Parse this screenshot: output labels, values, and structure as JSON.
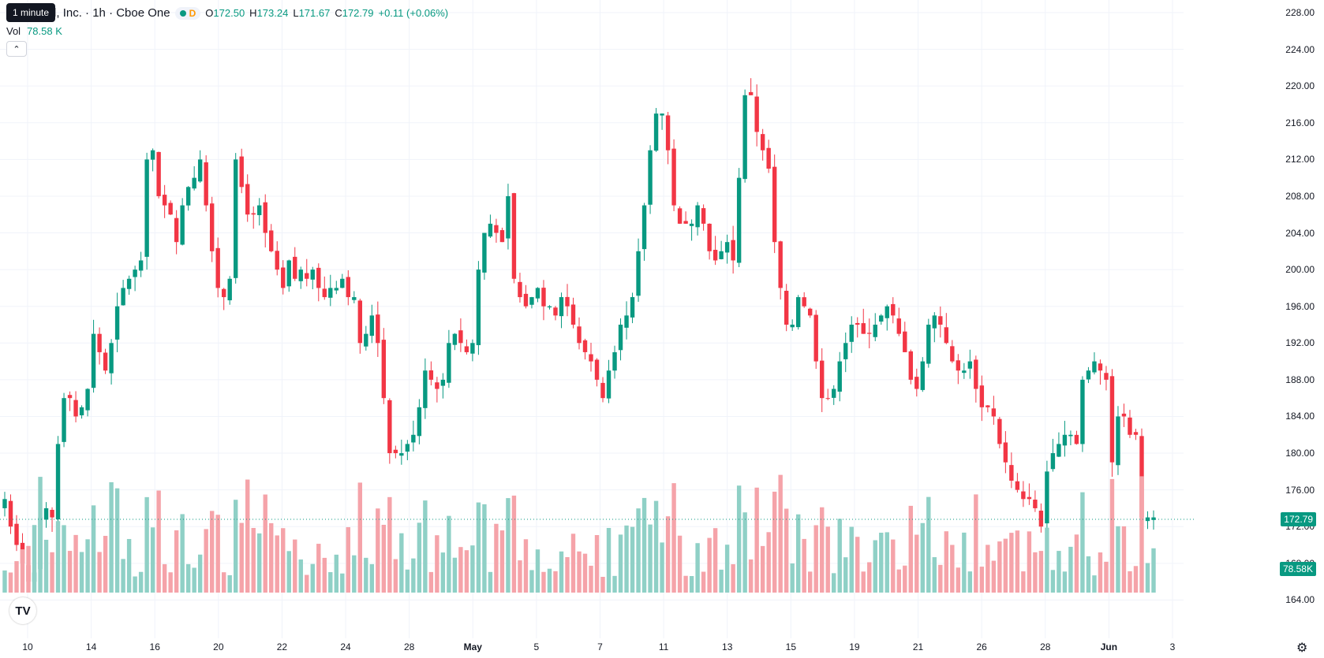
{
  "legend": {
    "symbol_title": "se Global, Inc. · 1h · Cboe One",
    "delay_badge": "D",
    "open_label": "O",
    "open": "172.50",
    "high_label": "H",
    "high": "173.24",
    "low_label": "L",
    "low": "171.67",
    "close_label": "C",
    "close": "172.79",
    "change": "+0.11 (+0.06%)"
  },
  "tooltip": {
    "text": "1 minute"
  },
  "volume": {
    "label": "Vol",
    "value": "78.58 K"
  },
  "collapse_button": {
    "icon": "chevron-up-icon"
  },
  "price_axis": {
    "labels": [
      "228.00",
      "224.00",
      "220.00",
      "216.00",
      "212.00",
      "208.00",
      "204.00",
      "200.00",
      "196.00",
      "192.00",
      "188.00",
      "184.00",
      "180.00",
      "176.00",
      "172.00",
      "168.00",
      "164.00"
    ],
    "last_price": "172.79",
    "volume_badge": "78.58K"
  },
  "time_axis": {
    "labels": [
      {
        "text": "10",
        "bold": false
      },
      {
        "text": "14",
        "bold": false
      },
      {
        "text": "16",
        "bold": false
      },
      {
        "text": "20",
        "bold": false
      },
      {
        "text": "22",
        "bold": false
      },
      {
        "text": "24",
        "bold": false
      },
      {
        "text": "28",
        "bold": false
      },
      {
        "text": "May",
        "bold": true
      },
      {
        "text": "5",
        "bold": false
      },
      {
        "text": "7",
        "bold": false
      },
      {
        "text": "11",
        "bold": false
      },
      {
        "text": "13",
        "bold": false
      },
      {
        "text": "15",
        "bold": false
      },
      {
        "text": "19",
        "bold": false
      },
      {
        "text": "21",
        "bold": false
      },
      {
        "text": "26",
        "bold": false
      },
      {
        "text": "28",
        "bold": false
      },
      {
        "text": "Jun",
        "bold": true
      },
      {
        "text": "3",
        "bold": false
      }
    ]
  },
  "colors": {
    "up": "#089981",
    "down": "#f23645",
    "up_volume": "#8fd0c6",
    "down_volume": "#f5a3a9",
    "grid": "#f0f3fa"
  },
  "chart_data": {
    "type": "candlestick",
    "ylim": [
      160,
      228
    ],
    "close_path": [
      175,
      172,
      170,
      168,
      166,
      167,
      173,
      174,
      173,
      181,
      186,
      186,
      184,
      185,
      187,
      193,
      191,
      189,
      192,
      196,
      198,
      199,
      200,
      201,
      212,
      213,
      208,
      207,
      206,
      203,
      207,
      209,
      210,
      212,
      207,
      202,
      198,
      197,
      199,
      212,
      209,
      206,
      206,
      207,
      204,
      202,
      200,
      198,
      201,
      199,
      200,
      199,
      200,
      198,
      197,
      198,
      198,
      199,
      197,
      197,
      192,
      193,
      195,
      192,
      186,
      180,
      180,
      180,
      181,
      182,
      185,
      189,
      188,
      187,
      188,
      192,
      193,
      192,
      191,
      192,
      200,
      204,
      205,
      204,
      203,
      208,
      199,
      197,
      196,
      197,
      198,
      196,
      196,
      195,
      197,
      196,
      194,
      192,
      191,
      190,
      188,
      186,
      189,
      191,
      194,
      195,
      197,
      202,
      207,
      213,
      217,
      217,
      213,
      207,
      205,
      205,
      205,
      207,
      205,
      202,
      201,
      202,
      203,
      201,
      210,
      219,
      219,
      215,
      213,
      211,
      203,
      198,
      194,
      194,
      197,
      196,
      195,
      190,
      186,
      186,
      187,
      190,
      192,
      194,
      194,
      193,
      193,
      194,
      195,
      196,
      195,
      193,
      191,
      188,
      187,
      190,
      194,
      195,
      194,
      192,
      190,
      189,
      189,
      190,
      187,
      185,
      185,
      184,
      181,
      179,
      177,
      176,
      175,
      175,
      174,
      172,
      178,
      180,
      181,
      182,
      182,
      181,
      188,
      189,
      190,
      189,
      188,
      179,
      184,
      184,
      182,
      182,
      173,
      173,
      173
    ]
  }
}
